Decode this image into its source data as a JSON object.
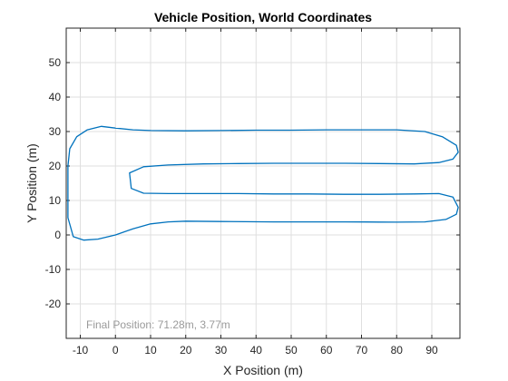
{
  "chart_data": {
    "type": "line",
    "title": "Vehicle Position, World Coordinates",
    "xlabel": "X Position (m)",
    "ylabel": "Y Position (m)",
    "xlim": [
      -14,
      98
    ],
    "ylim": [
      -30,
      60
    ],
    "xticks": [
      -10,
      0,
      10,
      20,
      30,
      40,
      50,
      60,
      70,
      80,
      90
    ],
    "yticks": [
      -20,
      -10,
      0,
      10,
      20,
      30,
      40,
      50
    ],
    "grid": true,
    "annotation": "Final Position: 71.28m, 3.77m",
    "series": [
      {
        "color": "#0072BD",
        "x": [
          71.28,
          60,
          45,
          30,
          20,
          15,
          10,
          5,
          0,
          -5,
          -9,
          -12,
          -13.5,
          -13.5,
          -13,
          -11,
          -8,
          -4,
          0,
          5,
          10,
          20,
          30,
          40,
          50,
          60,
          70,
          80,
          88,
          93,
          97,
          97.5,
          96,
          92,
          85,
          75,
          65,
          55,
          45,
          35,
          25,
          15,
          8,
          4,
          4.5,
          8,
          15,
          25,
          35,
          45,
          55,
          65,
          75,
          85,
          92,
          96,
          97.5,
          97,
          94,
          88,
          80,
          75,
          71.28
        ],
        "y": [
          3.77,
          3.8,
          3.8,
          3.9,
          4,
          3.8,
          3.2,
          1.8,
          0,
          -1.2,
          -1.5,
          -0.5,
          5,
          20,
          25,
          28.5,
          30.5,
          31.5,
          31,
          30.5,
          30.3,
          30.2,
          30.3,
          30.4,
          30.4,
          30.5,
          30.5,
          30.5,
          30,
          28.5,
          26,
          24,
          22,
          21,
          20.6,
          20.7,
          20.8,
          20.8,
          20.8,
          20.7,
          20.6,
          20.3,
          19.8,
          18,
          13.5,
          12.1,
          12,
          12,
          12,
          11.9,
          11.9,
          11.8,
          11.8,
          11.9,
          12,
          11,
          8,
          6,
          4.5,
          3.8,
          3.7,
          3.75,
          3.77
        ]
      }
    ]
  }
}
